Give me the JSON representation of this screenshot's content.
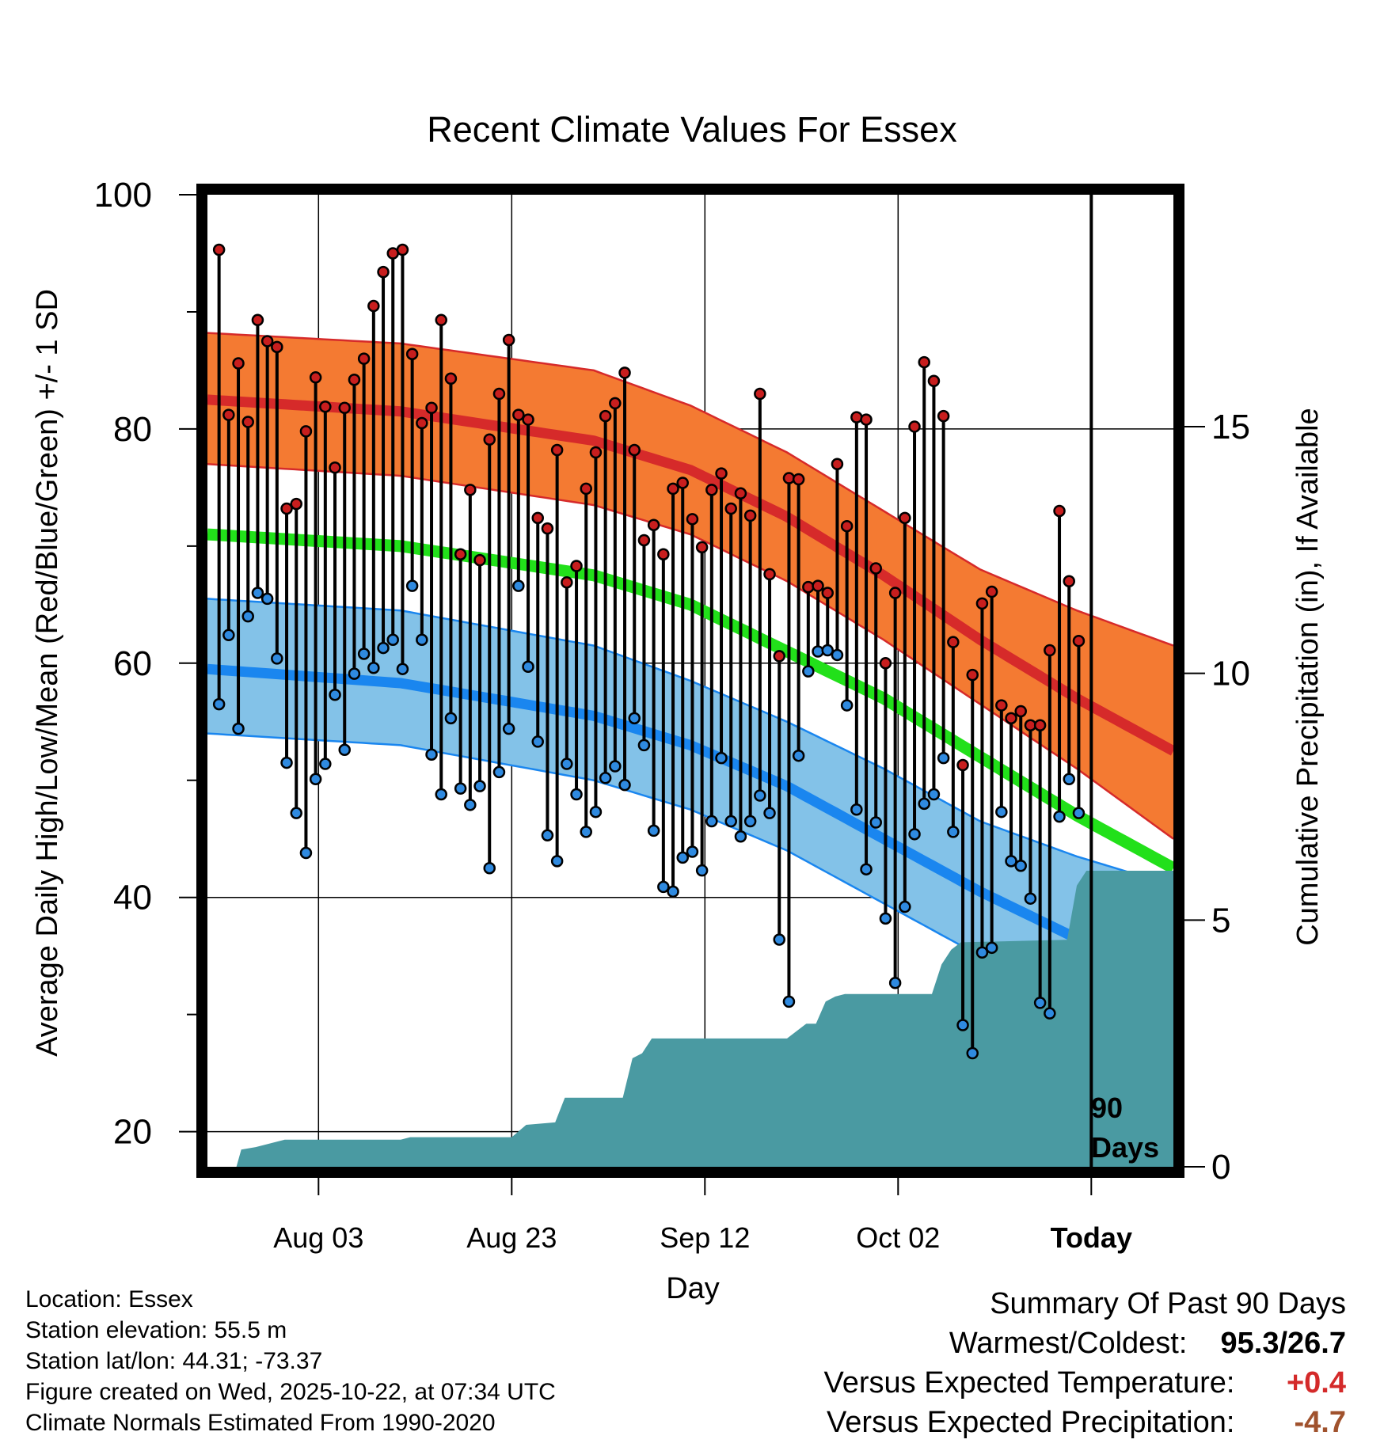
{
  "chart_data": {
    "type": "line",
    "title": "Recent Climate Values For Essex",
    "xlabel": "Day",
    "ylabel": "Average Daily High/Low/Mean (Red/Blue/Green) +/- 1 SD",
    "y2label": "Cumulative Precipitation (in), If Available",
    "xlim": [
      0,
      100
    ],
    "ylim": [
      17,
      100
    ],
    "y2lim": [
      0,
      19.7
    ],
    "yticks": [
      "100",
      "80",
      "60",
      "40",
      "20"
    ],
    "y2ticks": [
      "15",
      "10",
      "5",
      "0"
    ],
    "xticks": [
      {
        "day": 11.5,
        "label": "Aug 03"
      },
      {
        "day": 31.5,
        "label": "Aug 23"
      },
      {
        "day": 51.5,
        "label": "Sep 12"
      },
      {
        "day": 71.5,
        "label": "Oct 02"
      },
      {
        "day": 91.5,
        "label": "Today"
      }
    ],
    "today_day": 91.5,
    "today_label_1": "90",
    "today_label_2": "Days",
    "normals": {
      "day": [
        0,
        20,
        40,
        50,
        60,
        70,
        80,
        90,
        100
      ],
      "high_mean": [
        82.5,
        81.5,
        79,
        76.5,
        72.5,
        67.5,
        62,
        57,
        52.5
      ],
      "high_upper": [
        88.2,
        87.3,
        85,
        82,
        78,
        73,
        68,
        64.5,
        61.5
      ],
      "high_lower": [
        77,
        76,
        73.5,
        71,
        67,
        62,
        56.5,
        51,
        45
      ],
      "mean": [
        71,
        70,
        67.5,
        65,
        61,
        57,
        52,
        47,
        42.5
      ],
      "low_mean": [
        59.5,
        58.3,
        55.5,
        53,
        49.5,
        45,
        40.5,
        36.5,
        32.5
      ],
      "low_upper": [
        65.5,
        64.5,
        61.5,
        58.5,
        55,
        51,
        46.5,
        43.5,
        41
      ],
      "low_lower": [
        54,
        53,
        50,
        47.5,
        44,
        39.5,
        35,
        31,
        26.5
      ]
    },
    "series": [
      {
        "name": "Daily High",
        "color": "#c81e1e",
        "values": [
          95.3,
          81.2,
          85.6,
          80.6,
          89.3,
          87.5,
          87.0,
          73.2,
          73.6,
          79.8,
          84.4,
          81.9,
          76.7,
          81.8,
          84.2,
          86.0,
          90.5,
          93.4,
          95.0,
          95.3,
          86.4,
          80.5,
          81.8,
          89.3,
          84.3,
          69.3,
          74.8,
          68.8,
          79.1,
          83.0,
          87.6,
          81.2,
          80.8,
          72.4,
          71.5,
          78.2,
          66.9,
          68.3,
          74.9,
          78.0,
          81.1,
          82.2,
          84.8,
          78.2,
          70.5,
          71.8,
          69.3,
          74.9,
          75.4,
          72.3,
          69.9,
          74.8,
          76.2,
          73.2,
          74.5,
          72.6,
          83.0,
          67.6,
          60.6,
          75.8,
          75.7,
          66.5,
          66.6,
          66.0,
          77.0,
          71.7,
          81.0,
          80.8,
          68.1,
          60.0,
          66.0,
          72.4,
          80.2,
          85.7,
          84.1,
          81.1,
          61.8,
          51.3,
          59.0,
          65.1,
          66.1,
          56.4,
          55.3,
          55.9,
          54.7,
          54.7,
          61.1,
          73.0,
          67.0,
          61.9
        ]
      },
      {
        "name": "Daily Low",
        "color": "#2f8ae0",
        "values": [
          56.5,
          62.4,
          54.4,
          64.0,
          66.0,
          65.5,
          60.4,
          51.5,
          47.2,
          43.8,
          50.1,
          51.4,
          57.3,
          52.6,
          59.1,
          60.8,
          59.6,
          61.3,
          62.0,
          59.5,
          66.6,
          62.0,
          52.2,
          48.8,
          55.3,
          49.3,
          47.9,
          49.5,
          42.5,
          50.7,
          54.4,
          66.6,
          59.7,
          53.3,
          45.3,
          43.1,
          51.4,
          48.8,
          45.6,
          47.3,
          50.2,
          51.2,
          49.6,
          55.3,
          53.0,
          45.7,
          40.9,
          40.5,
          43.4,
          43.9,
          42.3,
          46.5,
          51.9,
          46.5,
          45.2,
          46.5,
          48.7,
          47.2,
          36.4,
          31.1,
          52.1,
          59.3,
          61.0,
          61.1,
          60.7,
          56.4,
          47.5,
          42.4,
          46.4,
          38.2,
          32.7,
          39.2,
          45.4,
          48.0,
          48.8,
          51.9,
          45.6,
          29.1,
          26.7,
          35.3,
          35.7,
          47.3,
          43.1,
          42.7,
          39.9,
          31.0,
          30.1,
          46.9,
          50.1,
          47.2
        ]
      },
      {
        "name": "Cumulative Precipitation",
        "color": "#4a9aa2",
        "precip_knots": [
          [
            0,
            0
          ],
          [
            3,
            0
          ],
          [
            3.5,
            0.35
          ],
          [
            5,
            0.4
          ],
          [
            8,
            0.55
          ],
          [
            20,
            0.55
          ],
          [
            21,
            0.6
          ],
          [
            31.5,
            0.6
          ],
          [
            33,
            0.85
          ],
          [
            36,
            0.9
          ],
          [
            37,
            1.4
          ],
          [
            43,
            1.4
          ],
          [
            44,
            2.2
          ],
          [
            45,
            2.3
          ],
          [
            46,
            2.6
          ],
          [
            60,
            2.6
          ],
          [
            62,
            2.9
          ],
          [
            63,
            2.9
          ],
          [
            64,
            3.35
          ],
          [
            65,
            3.45
          ],
          [
            66,
            3.5
          ],
          [
            75,
            3.5
          ],
          [
            76,
            4.1
          ],
          [
            77,
            4.4
          ],
          [
            78,
            4.55
          ],
          [
            89,
            4.6
          ],
          [
            90,
            5.7
          ],
          [
            91,
            6.0
          ],
          [
            100,
            6.0
          ]
        ]
      }
    ]
  },
  "location": {
    "location_line": "Location: Essex",
    "elevation_line": "Station elevation: 55.5 m",
    "latlon_line": "Station lat/lon: 44.31; -73.37",
    "created_line": "Figure created on Wed, 2025-10-22, at 07:34 UTC",
    "normals_line": "Climate Normals Estimated From 1990-2020"
  },
  "summary": {
    "heading": "Summary Of Past 90 Days",
    "warm_cold_label": "Warmest/Coldest:",
    "warm_cold_value": "95.3/26.7",
    "temp_label": "Versus Expected Temperature:",
    "temp_value": "+0.4",
    "precip_label": "Versus Expected Precipitation:",
    "precip_value": "-4.7",
    "temp_color": "#d42a2a",
    "precip_color": "#a0522d"
  },
  "colors": {
    "high_band": "#f47a32",
    "high_line": "#d62a2a",
    "mean_line": "#22e01a",
    "low_band": "#83c2e8",
    "low_line": "#1a86ef",
    "precip_fill": "#4a9aa2"
  }
}
